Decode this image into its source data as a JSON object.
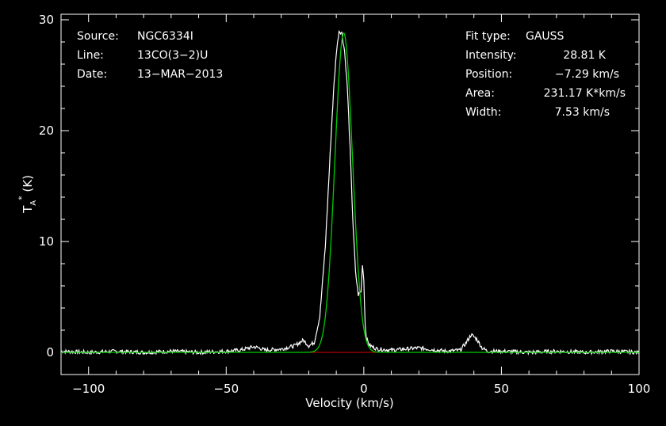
{
  "chart_data": {
    "type": "line",
    "xlabel": "Velocity (km/s)",
    "ylabel_main": "T",
    "ylabel_sub": "A",
    "ylabel_sup": "*",
    "ylabel_unit": " (K)",
    "xlim": [
      -110,
      100
    ],
    "ylim": [
      -2,
      30.5
    ],
    "x_ticks": [
      -100,
      -50,
      0,
      50,
      100
    ],
    "y_ticks": [
      0,
      10,
      20,
      30
    ],
    "x_tick_labels": [
      "−100",
      "−50",
      "0",
      "50",
      "100"
    ],
    "y_tick_labels": [
      "0",
      "10",
      "20",
      "30"
    ],
    "grid": false,
    "colors": {
      "background": "#000000",
      "axes": "#ffffff",
      "spectrum": "#ffffff",
      "fit": "#00cc00",
      "baseline": "#dd0000"
    },
    "spectrum": {
      "x": [
        -110,
        -100,
        -90,
        -80,
        -70,
        -60,
        -50,
        -45,
        -40,
        -38,
        -36,
        -30,
        -25,
        -22,
        -20,
        -18,
        -16,
        -14,
        -13,
        -12,
        -11,
        -10,
        -9,
        -8,
        -7,
        -6,
        -5,
        -4,
        -3,
        -2,
        -1,
        -0.5,
        0,
        0.5,
        1,
        2,
        3,
        5,
        10,
        15,
        20,
        30,
        35,
        37,
        39,
        41,
        43,
        45,
        50,
        60,
        70,
        80,
        90,
        100
      ],
      "y": [
        0.1,
        0.0,
        0.1,
        0.0,
        0.1,
        0.0,
        0.1,
        0.2,
        0.5,
        0.4,
        0.2,
        0.3,
        0.6,
        1.1,
        0.6,
        0.9,
        3.2,
        9.5,
        14.2,
        19.0,
        23.5,
        27.0,
        29.0,
        28.8,
        27.2,
        24.0,
        18.5,
        12.0,
        7.2,
        5.2,
        5.5,
        8.0,
        6.5,
        2.5,
        1.2,
        0.7,
        0.5,
        0.3,
        0.2,
        0.3,
        0.4,
        0.1,
        0.2,
        0.8,
        1.6,
        1.2,
        0.4,
        0.1,
        0.1,
        0.0,
        0.1,
        0.0,
        0.1,
        0.0
      ]
    },
    "fit": {
      "type": "GAUSS",
      "intensity": 28.81,
      "position": -7.29,
      "width": 7.53,
      "fit_window": [
        -20,
        5
      ]
    },
    "annotations": {
      "left": [
        {
          "key": "Source:",
          "value": "NGC6334I"
        },
        {
          "key": "Line:",
          "value": "13CO(3−2)U"
        },
        {
          "key": "Date:",
          "value": "13−MAR−2013"
        }
      ],
      "right": [
        {
          "key": "Fit type:",
          "value": "GAUSS"
        },
        {
          "key": "Intensity:",
          "value": "28.81 K"
        },
        {
          "key": "Position:",
          "value": "−7.29 km/s"
        },
        {
          "key": "Area:",
          "value": "231.17 K*km/s"
        },
        {
          "key": "Width:",
          "value": "7.53 km/s"
        }
      ]
    }
  }
}
